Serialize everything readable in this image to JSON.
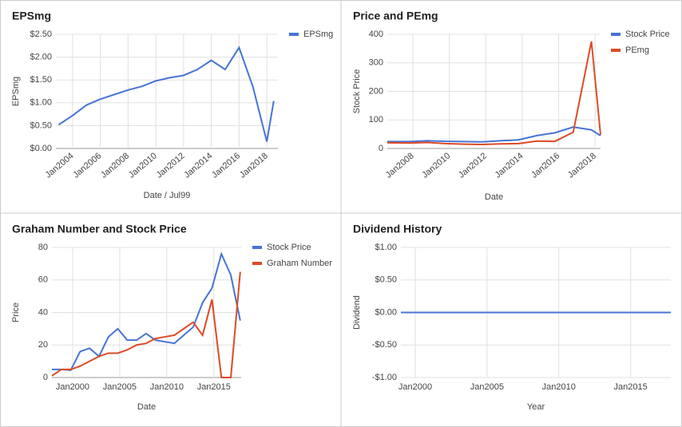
{
  "chart_data": [
    {
      "type": "line",
      "title": "EPSmg",
      "x_label": "Date / Jul99",
      "y_label": "EPSmg",
      "x": [
        2003,
        2004,
        2005,
        2006,
        2007,
        2008,
        2009,
        2010,
        2011,
        2012,
        2013,
        2014,
        2015,
        2016,
        2017,
        2018,
        2018.5
      ],
      "series": [
        {
          "name": "EPSmg",
          "color": "#4674d4",
          "values": [
            0.52,
            0.72,
            0.95,
            1.08,
            1.18,
            1.28,
            1.36,
            1.48,
            1.55,
            1.6,
            1.73,
            1.93,
            1.73,
            2.21,
            1.35,
            0.15,
            1.04
          ]
        }
      ],
      "xlim": [
        2002.8,
        2018.8
      ],
      "xticks": [
        {
          "value": 2004,
          "label": "Jan2004"
        },
        {
          "value": 2006,
          "label": "Jan2006"
        },
        {
          "value": 2008,
          "label": "Jan2008"
        },
        {
          "value": 2010,
          "label": "Jan2010"
        },
        {
          "value": 2012,
          "label": "Jan2012"
        },
        {
          "value": 2014,
          "label": "Jan2014"
        },
        {
          "value": 2016,
          "label": "Jan2016"
        },
        {
          "value": 2018,
          "label": "Jan2018"
        }
      ],
      "ylim": [
        0,
        2.5
      ],
      "yticks": [
        {
          "value": 0,
          "label": "$0.00"
        },
        {
          "value": 0.5,
          "label": "$0.50"
        },
        {
          "value": 1,
          "label": "$1.00"
        },
        {
          "value": 1.5,
          "label": "$1.50"
        },
        {
          "value": 2,
          "label": "$2.00"
        },
        {
          "value": 2.5,
          "label": "$2.50"
        }
      ],
      "grid": true
    },
    {
      "type": "line",
      "title": "Price and PEmg",
      "x_label": "Date",
      "y_label": "Stock Price",
      "x": [
        2006.6,
        2007.8,
        2008.8,
        2009.8,
        2010.8,
        2011.8,
        2012.8,
        2013.8,
        2014.8,
        2015.8,
        2016.8,
        2017.8,
        2018.3
      ],
      "series": [
        {
          "name": "Stock Price",
          "color": "#4674d4",
          "values": [
            24,
            24,
            27,
            25,
            24,
            23,
            27,
            30,
            45,
            55,
            75,
            65,
            45
          ]
        },
        {
          "name": "PEmg",
          "color": "#dc4b26",
          "values": [
            20,
            19,
            21,
            17,
            15,
            14,
            16,
            17,
            26,
            25,
            57,
            375,
            48
          ]
        }
      ],
      "xlim": [
        2006.6,
        2018.3
      ],
      "xticks": [
        {
          "value": 2008,
          "label": "Jan2008"
        },
        {
          "value": 2010,
          "label": "Jan2010"
        },
        {
          "value": 2012,
          "label": "Jan2012"
        },
        {
          "value": 2014,
          "label": "Jan2014"
        },
        {
          "value": 2016,
          "label": "Jan2016"
        },
        {
          "value": 2018,
          "label": "Jan2018"
        }
      ],
      "ylim": [
        0,
        400
      ],
      "yticks": [
        0,
        100,
        200,
        300,
        400
      ],
      "grid": true
    },
    {
      "type": "line",
      "title": "Graham Number and Stock Price",
      "x_label": "Date",
      "y_label": "Price",
      "x": [
        1997.8,
        1998.8,
        1999.8,
        2000.8,
        2001.8,
        2002.8,
        2003.8,
        2004.8,
        2005.8,
        2006.8,
        2007.8,
        2008.8,
        2009.8,
        2010.8,
        2011.8,
        2012.8,
        2013.8,
        2014.8,
        2015.8,
        2016.8,
        2017.8
      ],
      "series": [
        {
          "name": "Stock Price",
          "color": "#4674d4",
          "values": [
            5,
            5,
            4.5,
            16,
            18,
            13,
            25,
            30,
            23,
            23,
            27,
            23,
            22,
            21,
            26,
            31,
            46,
            55,
            76,
            63,
            35
          ]
        },
        {
          "name": "Graham Number",
          "color": "#dc4b26",
          "values": [
            1,
            5,
            5,
            7,
            10,
            13,
            15,
            15,
            17,
            20,
            21,
            24,
            25,
            26,
            30,
            34,
            26,
            48,
            0,
            0,
            65
          ]
        }
      ],
      "xlim": [
        1997.8,
        2017.9
      ],
      "xticks": [
        {
          "value": 2000,
          "label": "Jan2000"
        },
        {
          "value": 2005,
          "label": "Jan2005"
        },
        {
          "value": 2010,
          "label": "Jan2010"
        },
        {
          "value": 2015,
          "label": "Jan2015"
        }
      ],
      "ylim": [
        0,
        80
      ],
      "yticks": [
        0,
        20,
        40,
        60,
        80
      ],
      "grid": true
    },
    {
      "type": "line",
      "title": "Dividend History",
      "x_label": "Year",
      "y_label": "Dividend",
      "x": [
        1999,
        2000,
        2001,
        2002,
        2003,
        2004,
        2005,
        2006,
        2007,
        2008,
        2009,
        2010,
        2011,
        2012,
        2013,
        2014,
        2015,
        2016,
        2017.8
      ],
      "series": [
        {
          "color": "#4674d4",
          "values": [
            0,
            0,
            0,
            0,
            0,
            0,
            0,
            0,
            0,
            0,
            0,
            0,
            0,
            0,
            0,
            0,
            0,
            0,
            0
          ]
        }
      ],
      "xlim": [
        1999,
        2017.8
      ],
      "xticks": [
        {
          "value": 2000,
          "label": "Jan2000"
        },
        {
          "value": 2005,
          "label": "Jan2005"
        },
        {
          "value": 2010,
          "label": "Jan2010"
        },
        {
          "value": 2015,
          "label": "Jan2015"
        }
      ],
      "ylim": [
        -1,
        1
      ],
      "yticks": [
        {
          "value": -1,
          "label": "-$1.00"
        },
        {
          "value": -0.5,
          "label": "-$0.50"
        },
        {
          "value": 0,
          "label": "$0.00"
        },
        {
          "value": 0.5,
          "label": "$0.50"
        },
        {
          "value": 1,
          "label": "$1.00"
        }
      ],
      "grid": true
    }
  ]
}
